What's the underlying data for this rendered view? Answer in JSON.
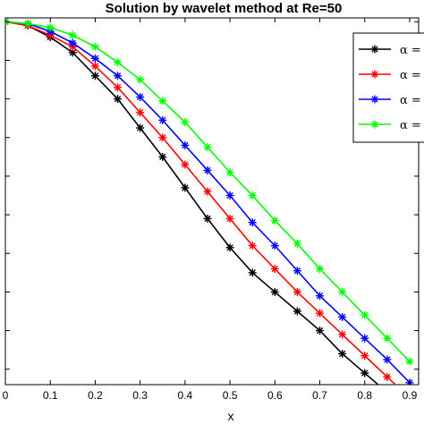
{
  "chart_data": {
    "type": "line",
    "title": "Solution by wavelet method at Re=50",
    "xlabel": "x",
    "ylabel": "",
    "xlim": [
      0,
      0.92
    ],
    "ylim": [
      0.06,
      1.01
    ],
    "grid": false,
    "legend_placement": "top-right",
    "x_ticks": [
      0,
      0.1,
      0.2,
      0.3,
      0.4,
      0.5,
      0.6,
      0.7,
      0.8,
      0.9
    ],
    "x_tick_labels": [
      "0",
      "0.1",
      "0.2",
      "0.3",
      "0.4",
      "0.5",
      "0.6",
      "0.7",
      "0.8",
      "0.9"
    ],
    "y_ticks": [
      0.1,
      0.2,
      0.3,
      0.4,
      0.5,
      0.6,
      0.7,
      0.8,
      0.9,
      1.0
    ],
    "x": [
      0,
      0.05,
      0.1,
      0.15,
      0.2,
      0.25,
      0.3,
      0.35,
      0.4,
      0.45,
      0.5,
      0.55,
      0.6,
      0.65,
      0.7,
      0.75,
      0.8,
      0.85,
      0.9
    ],
    "series": [
      {
        "name": "α =",
        "color": "#000000",
        "values": [
          1.0,
          0.99,
          0.96,
          0.92,
          0.86,
          0.8,
          0.725,
          0.65,
          0.57,
          0.49,
          0.415,
          0.35,
          0.3,
          0.25,
          0.2,
          0.14,
          0.09,
          0.04,
          -0.01
        ]
      },
      {
        "name": "α =",
        "color": "#ff0000",
        "values": [
          1.0,
          0.99,
          0.965,
          0.935,
          0.885,
          0.83,
          0.765,
          0.7,
          0.63,
          0.56,
          0.49,
          0.42,
          0.36,
          0.3,
          0.245,
          0.19,
          0.135,
          0.08,
          0.025
        ]
      },
      {
        "name": "α =",
        "color": "#0000ff",
        "values": [
          1.0,
          0.995,
          0.975,
          0.945,
          0.905,
          0.86,
          0.805,
          0.745,
          0.68,
          0.615,
          0.55,
          0.48,
          0.42,
          0.355,
          0.29,
          0.235,
          0.18,
          0.125,
          0.065
        ]
      },
      {
        "name": "α =",
        "color": "#00ff00",
        "values": [
          1.0,
          0.995,
          0.985,
          0.965,
          0.935,
          0.895,
          0.85,
          0.795,
          0.74,
          0.675,
          0.61,
          0.55,
          0.485,
          0.425,
          0.36,
          0.3,
          0.24,
          0.18,
          0.12
        ]
      }
    ]
  }
}
